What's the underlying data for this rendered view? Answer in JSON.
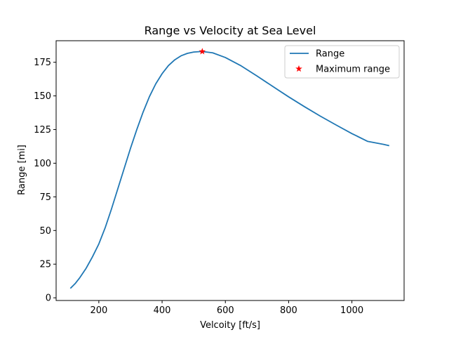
{
  "chart_data": {
    "type": "line",
    "title": "Range vs Velocity at Sea Level",
    "xlabel": "Velcoity [ft/s]",
    "ylabel": "Range [mi]",
    "xlim": [
      65,
      1165
    ],
    "ylim": [
      -2,
      191
    ],
    "xticks": [
      200,
      400,
      600,
      800,
      1000
    ],
    "yticks": [
      0,
      25,
      50,
      75,
      100,
      125,
      150,
      175
    ],
    "grid": false,
    "legend_position": "top-right",
    "series": [
      {
        "name": "Range",
        "kind": "line",
        "color": "#1f77b4",
        "x": [
          110,
          125,
          140,
          160,
          180,
          200,
          220,
          240,
          260,
          280,
          300,
          320,
          340,
          360,
          380,
          400,
          420,
          440,
          460,
          480,
          500,
          520,
          530,
          560,
          600,
          650,
          700,
          750,
          800,
          850,
          900,
          950,
          1000,
          1050,
          1100,
          1118
        ],
        "y": [
          7,
          10.5,
          15,
          22,
          30.5,
          40,
          52,
          66,
          81,
          96,
          111,
          125,
          138,
          149.5,
          159,
          166.5,
          172.5,
          176.8,
          179.8,
          181.6,
          182.6,
          182.9,
          182.9,
          182,
          178.5,
          172.3,
          164.8,
          157,
          149.3,
          142,
          135,
          128.4,
          122,
          116.2,
          114,
          113
        ]
      },
      {
        "name": "Maximum range",
        "kind": "marker",
        "marker": "star",
        "color": "#ff0000",
        "x": [
          527
        ],
        "y": [
          183
        ]
      }
    ]
  }
}
